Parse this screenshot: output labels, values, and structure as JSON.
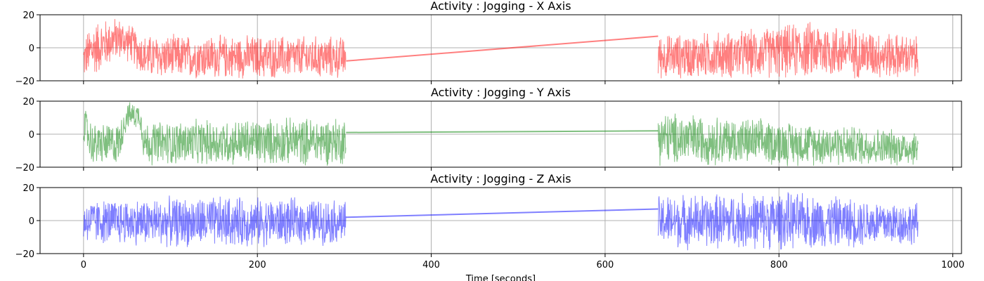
{
  "chart_data": {
    "type": "line",
    "xlabel": "Time [seconds]",
    "xlim": [
      -50,
      1010
    ],
    "x_ticks": [
      0,
      200,
      400,
      600,
      800,
      1000
    ],
    "ylim": [
      -20,
      20
    ],
    "y_ticks": [
      -20,
      0,
      20
    ],
    "grid": true,
    "shared_x": true,
    "panels": [
      {
        "title": "Activity : Jogging - X Axis",
        "color": "#ff0000",
        "alpha": 0.5,
        "segments": [
          {
            "x_start": 0,
            "x_end": 302
          },
          {
            "x_start": 661,
            "x_end": 960
          }
        ],
        "gap_line": {
          "x": [
            302,
            661
          ],
          "y": [
            -8,
            7
          ]
        },
        "envelope": [
          {
            "x": 0,
            "y_min": -20,
            "y_max": 6
          },
          {
            "x": 10,
            "y_min": -20,
            "y_max": 18
          },
          {
            "x": 40,
            "y_min": -8,
            "y_max": 20
          },
          {
            "x": 55,
            "y_min": -10,
            "y_max": 15
          },
          {
            "x": 70,
            "y_min": -20,
            "y_max": 9
          },
          {
            "x": 150,
            "y_min": -20,
            "y_max": 9
          },
          {
            "x": 302,
            "y_min": -20,
            "y_max": 8
          },
          {
            "x": 661,
            "y_min": -20,
            "y_max": 9
          },
          {
            "x": 760,
            "y_min": -20,
            "y_max": 12
          },
          {
            "x": 840,
            "y_min": -20,
            "y_max": 18
          },
          {
            "x": 960,
            "y_min": -20,
            "y_max": 8
          }
        ]
      },
      {
        "title": "Activity : Jogging - Y Axis",
        "color": "#008000",
        "alpha": 0.5,
        "segments": [
          {
            "x_start": 0,
            "x_end": 302
          },
          {
            "x_start": 661,
            "x_end": 960
          }
        ],
        "gap_line": {
          "x": [
            302,
            661
          ],
          "y": [
            1,
            2
          ]
        },
        "envelope": [
          {
            "x": 0,
            "y_min": -8,
            "y_max": 20
          },
          {
            "x": 10,
            "y_min": -20,
            "y_max": 8
          },
          {
            "x": 40,
            "y_min": -20,
            "y_max": 8
          },
          {
            "x": 50,
            "y_min": 3,
            "y_max": 20
          },
          {
            "x": 65,
            "y_min": 3,
            "y_max": 20
          },
          {
            "x": 70,
            "y_min": -20,
            "y_max": 9
          },
          {
            "x": 300,
            "y_min": -20,
            "y_max": 12
          },
          {
            "x": 302,
            "y_min": -20,
            "y_max": 2
          },
          {
            "x": 661,
            "y_min": -20,
            "y_max": 20
          },
          {
            "x": 670,
            "y_min": -20,
            "y_max": 15
          },
          {
            "x": 960,
            "y_min": -20,
            "y_max": 3
          }
        ]
      },
      {
        "title": "Activity : Jogging - Z Axis",
        "color": "#0000ff",
        "alpha": 0.5,
        "segments": [
          {
            "x_start": 0,
            "x_end": 302
          },
          {
            "x_start": 661,
            "x_end": 960
          }
        ],
        "gap_line": {
          "x": [
            302,
            661
          ],
          "y": [
            2,
            7
          ]
        },
        "envelope": [
          {
            "x": 0,
            "y_min": -15,
            "y_max": 14
          },
          {
            "x": 150,
            "y_min": -18,
            "y_max": 16
          },
          {
            "x": 302,
            "y_min": -15,
            "y_max": 14
          },
          {
            "x": 661,
            "y_min": -18,
            "y_max": 17
          },
          {
            "x": 800,
            "y_min": -19,
            "y_max": 19
          },
          {
            "x": 960,
            "y_min": -16,
            "y_max": 12
          }
        ]
      }
    ]
  }
}
